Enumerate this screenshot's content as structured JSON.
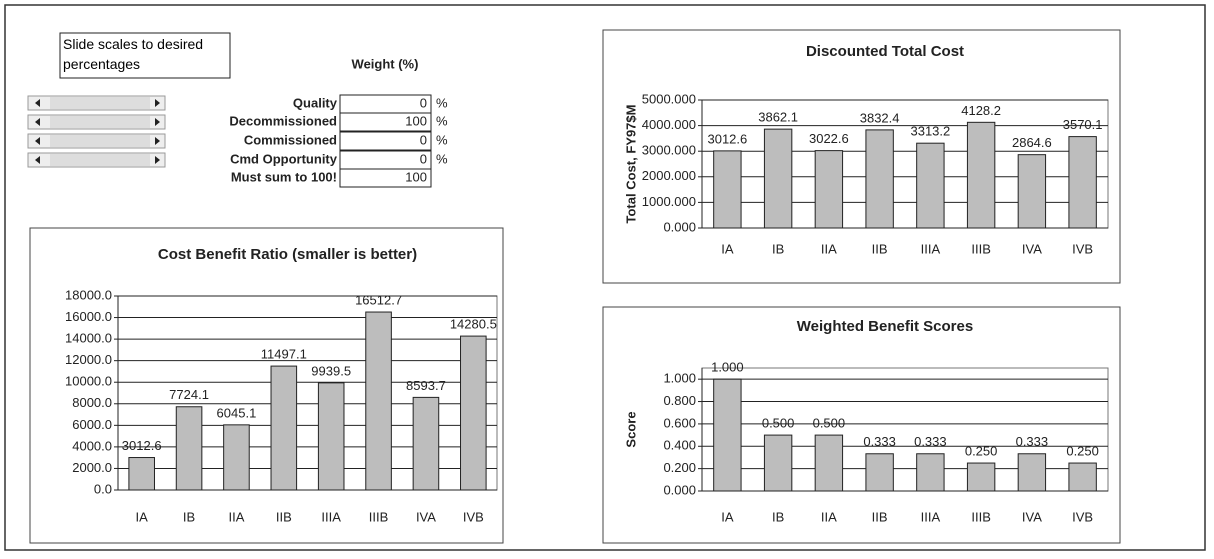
{
  "panel": {
    "instruction": "Slide scales to desired percentages",
    "weight_header": "Weight (%)",
    "unit": "%",
    "rows": [
      {
        "label": "Quality",
        "value": 0
      },
      {
        "label": "Decommissioned",
        "value": 100
      },
      {
        "label": "Commissioned",
        "value": 0
      },
      {
        "label": "Cmd Opportunity",
        "value": 0
      }
    ],
    "sum_label": "Must sum to 100!",
    "sum_value": 100
  },
  "chart_data": [
    {
      "type": "bar",
      "title": "Cost Benefit Ratio (smaller is better)",
      "categories": [
        "IA",
        "IB",
        "IIA",
        "IIB",
        "IIIA",
        "IIIB",
        "IVA",
        "IVB"
      ],
      "values": [
        3012.6,
        7724.1,
        6045.1,
        11497.1,
        9939.5,
        16512.7,
        8593.7,
        14280.5
      ],
      "color": "#bdbdbd",
      "grid": true,
      "ylim": [
        0,
        18000
      ],
      "yticks": [
        {
          "value": 0,
          "label": "0.0"
        },
        {
          "value": 2000,
          "label": "2000.0"
        },
        {
          "value": 4000,
          "label": "4000.0"
        },
        {
          "value": 6000,
          "label": "6000.0"
        },
        {
          "value": 8000,
          "label": "8000.0"
        },
        {
          "value": 10000,
          "label": "10000.0"
        },
        {
          "value": 12000,
          "label": "12000.0"
        },
        {
          "value": 14000,
          "label": "14000.0"
        },
        {
          "value": 16000,
          "label": "16000.0"
        },
        {
          "value": 18000,
          "label": "18000.0"
        }
      ]
    },
    {
      "type": "bar",
      "title": "Discounted Total Cost",
      "ylabel": "Total Cost, FY97$M",
      "categories": [
        "IA",
        "IB",
        "IIA",
        "IIB",
        "IIIA",
        "IIIB",
        "IVA",
        "IVB"
      ],
      "values": [
        3012.6,
        3862.1,
        3022.6,
        3832.4,
        3313.2,
        4128.2,
        2864.6,
        3570.1
      ],
      "color": "#bdbdbd",
      "grid": true,
      "ylim": [
        0,
        5000
      ],
      "yticks": [
        {
          "value": 0,
          "label": "0.000"
        },
        {
          "value": 1000,
          "label": "1000.000"
        },
        {
          "value": 2000,
          "label": "2000.000"
        },
        {
          "value": 3000,
          "label": "3000.000"
        },
        {
          "value": 4000,
          "label": "4000.000"
        },
        {
          "value": 5000,
          "label": "5000.000"
        }
      ]
    },
    {
      "type": "bar",
      "title": "Weighted Benefit Scores",
      "ylabel": "Score",
      "categories": [
        "IA",
        "IB",
        "IIA",
        "IIB",
        "IIIA",
        "IIIB",
        "IVA",
        "IVB"
      ],
      "values": [
        1,
        0.5,
        0.5,
        0.333,
        0.333,
        0.25,
        0.333,
        0.25
      ],
      "value_labels": [
        "1.000",
        "0.500",
        "0.500",
        "0.333",
        "0.333",
        "0.250",
        "0.333",
        "0.250"
      ],
      "color": "#bdbdbd",
      "grid": true,
      "ylim": [
        0,
        1.1
      ],
      "yticks": [
        {
          "value": 0,
          "label": "0.000"
        },
        {
          "value": 0.2,
          "label": "0.200"
        },
        {
          "value": 0.4,
          "label": "0.400"
        },
        {
          "value": 0.6,
          "label": "0.600"
        },
        {
          "value": 0.8,
          "label": "0.800"
        },
        {
          "value": 1,
          "label": "1.000"
        }
      ]
    }
  ]
}
